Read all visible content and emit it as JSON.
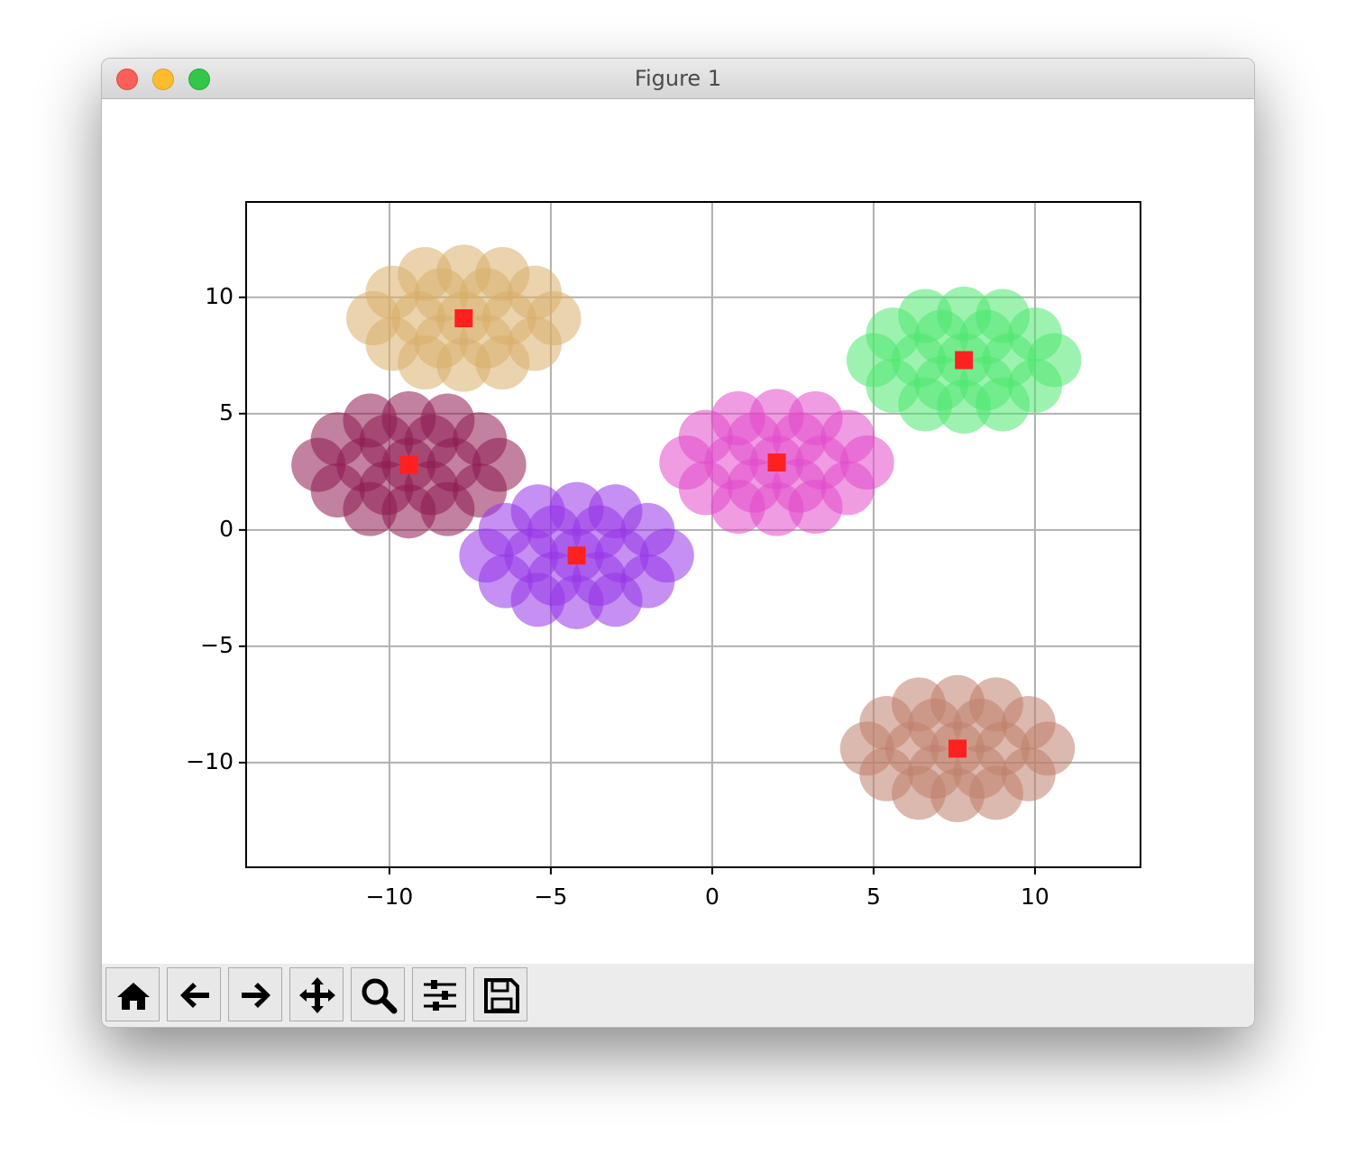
{
  "window": {
    "title": "Figure 1"
  },
  "chart_data": {
    "type": "scatter",
    "xlim": [
      -14.44,
      13.27
    ],
    "ylim": [
      -14.5,
      14.1
    ],
    "xticks": [
      {
        "value": -10,
        "label": "−10"
      },
      {
        "value": -5,
        "label": "−5"
      },
      0,
      5,
      10
    ],
    "yticks": [
      {
        "value": -10,
        "label": "−10"
      },
      {
        "value": -5,
        "label": "−5"
      },
      0,
      5,
      10
    ],
    "grid": true,
    "series": [
      {
        "color": "#d9ae6a",
        "x": [
          -7.7,
          -6.3,
          -9.1,
          -7.0,
          -8.4,
          -7.0,
          -8.4,
          -4.9,
          -10.5,
          -5.5,
          -9.9,
          -5.5,
          -9.9,
          -6.5,
          -8.9,
          -6.5,
          -8.9,
          -7.7,
          -7.7
        ],
        "values": [
          9.1,
          9.1,
          9.1,
          10.1,
          10.1,
          8.1,
          8.1,
          9.1,
          9.1,
          10.2,
          10.2,
          8.0,
          8.0,
          11.0,
          11.0,
          7.2,
          7.2,
          11.1,
          7.1
        ]
      },
      {
        "color": "#8e1950",
        "x": [
          -9.4,
          -8.0,
          -10.8,
          -8.7,
          -10.1,
          -8.7,
          -10.1,
          -6.6,
          -12.2,
          -7.2,
          -11.6,
          -7.2,
          -11.6,
          -8.2,
          -10.6,
          -8.2,
          -10.6,
          -9.4,
          -9.4
        ],
        "values": [
          2.8,
          2.8,
          2.8,
          3.8,
          3.8,
          1.8,
          1.8,
          2.8,
          2.8,
          3.9,
          3.9,
          1.7,
          1.7,
          4.7,
          4.7,
          0.9,
          0.9,
          4.8,
          0.8
        ]
      },
      {
        "color": "#9535e8",
        "x": [
          -4.2,
          -2.8,
          -5.6,
          -3.5,
          -4.9,
          -3.5,
          -4.9,
          -1.4,
          -7.0,
          -2.0,
          -6.4,
          -2.0,
          -6.4,
          -3.0,
          -5.4,
          -3.0,
          -5.4,
          -4.2,
          -4.2
        ],
        "values": [
          -1.1,
          -1.1,
          -1.1,
          -0.1,
          -0.1,
          -2.1,
          -2.1,
          -1.1,
          -1.1,
          0.0,
          0.0,
          -2.2,
          -2.2,
          0.8,
          0.8,
          -3.0,
          -3.0,
          0.9,
          -3.1
        ]
      },
      {
        "color": "#e24bca",
        "x": [
          2.0,
          3.4,
          0.6,
          2.7,
          1.3,
          2.7,
          1.3,
          4.8,
          -0.8,
          4.2,
          -0.2,
          4.2,
          -0.2,
          3.2,
          0.8,
          3.2,
          0.8,
          2.0,
          2.0
        ],
        "values": [
          2.9,
          2.9,
          2.9,
          3.9,
          3.9,
          1.9,
          1.9,
          2.9,
          2.9,
          4.0,
          4.0,
          1.8,
          1.8,
          4.8,
          4.8,
          1.0,
          1.0,
          4.9,
          0.9
        ]
      },
      {
        "color": "#4fe86f",
        "x": [
          7.8,
          9.2,
          6.4,
          8.5,
          7.1,
          8.5,
          7.1,
          10.6,
          5.0,
          10.0,
          5.6,
          10.0,
          5.6,
          9.0,
          6.6,
          9.0,
          6.6,
          7.8,
          7.8
        ],
        "values": [
          7.3,
          7.3,
          7.3,
          8.3,
          8.3,
          6.3,
          6.3,
          7.3,
          7.3,
          8.4,
          8.4,
          6.2,
          6.2,
          9.2,
          9.2,
          5.4,
          5.4,
          9.3,
          5.3
        ]
      },
      {
        "color": "#c0806c",
        "x": [
          7.6,
          9.0,
          6.2,
          8.3,
          6.9,
          8.3,
          6.9,
          10.4,
          4.8,
          9.8,
          5.4,
          9.8,
          5.4,
          8.8,
          6.4,
          8.8,
          6.4,
          7.6,
          7.6
        ],
        "values": [
          -9.4,
          -9.4,
          -9.4,
          -8.4,
          -8.4,
          -10.4,
          -10.4,
          -9.4,
          -9.4,
          -8.3,
          -8.3,
          -10.5,
          -10.5,
          -7.5,
          -7.5,
          -11.3,
          -11.3,
          -7.4,
          -11.4
        ]
      },
      {
        "color": "#ff2020",
        "marker": "square",
        "x": [
          -7.7,
          -9.4,
          -4.2,
          2.0,
          7.8,
          7.6
        ],
        "values": [
          9.1,
          2.8,
          -1.1,
          2.9,
          7.3,
          -9.4
        ]
      }
    ]
  }
}
